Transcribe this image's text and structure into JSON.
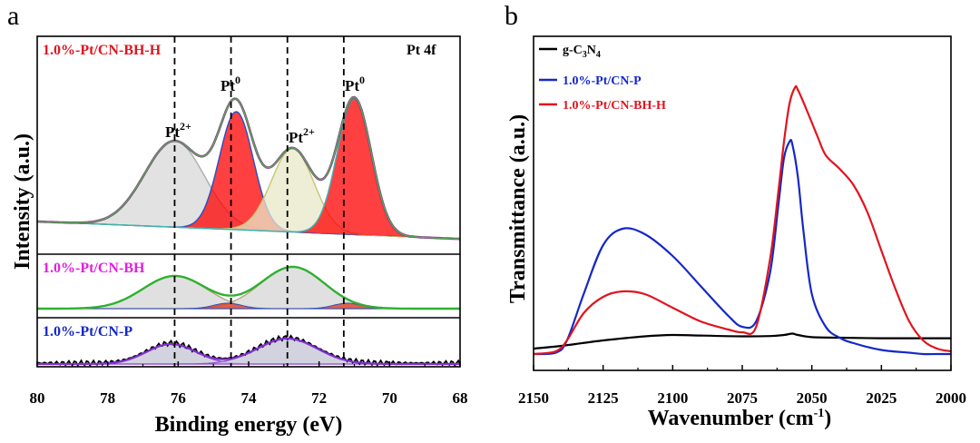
{
  "panel_a": {
    "letter": "a",
    "element_label": "Pt 4f",
    "xlabel": "Binding energy (eV)",
    "ylabel": "Intensity (a.u.)",
    "xticks": [
      "80",
      "78",
      "76",
      "74",
      "72",
      "70",
      "68"
    ],
    "sample_labels": [
      {
        "text": "1.0%-Pt/CN-BH-H",
        "color": "#e0141e"
      },
      {
        "text": "1.0%-Pt/CN-BH",
        "color": "#e020e0"
      },
      {
        "text": "1.0%-Pt/CN-P",
        "color": "#1428c8"
      }
    ],
    "peak_labels": [
      {
        "base": "Pt",
        "sup": "2+"
      },
      {
        "base": "Pt",
        "sup": "0"
      },
      {
        "base": "Pt",
        "sup": "2+"
      },
      {
        "base": "Pt",
        "sup": "0"
      }
    ]
  },
  "panel_b": {
    "letter": "b",
    "xlabel_base": "Wavenumber (cm",
    "xlabel_sup": "-1",
    "xlabel_end": ")",
    "ylabel": "Transmittance (a.u.)",
    "xticks": [
      "2150",
      "2125",
      "2100",
      "2075",
      "2050",
      "2025",
      "2000"
    ],
    "legend": [
      {
        "base": "g-C",
        "sub1": "3",
        "mid": "N",
        "sub2": "4",
        "color": "#000000"
      },
      {
        "base": "1.0%-Pt/CN-P",
        "color": "#1428c8"
      },
      {
        "base": "1.0%-Pt/CN-BH-H",
        "color": "#e0141e"
      }
    ]
  },
  "chart_data": [
    {
      "type": "line",
      "title": "",
      "xlabel": "Binding energy (eV)",
      "ylabel": "Intensity (a.u.)",
      "xlim": [
        80,
        68
      ],
      "x_reversed": true,
      "reference_lines_eV": [
        76.1,
        74.5,
        72.9,
        71.3
      ],
      "series": [
        {
          "name": "1.0%-Pt/CN-BH-H",
          "peaks": [
            {
              "state": "Pt2+",
              "center": 76.1,
              "color": "#d0d0d0"
            },
            {
              "state": "Pt0",
              "center": 74.4,
              "color": "#ff0000"
            },
            {
              "state": "Pt2+",
              "center": 72.7,
              "color": "#e0e0b0"
            },
            {
              "state": "Pt0",
              "center": 71.0,
              "color": "#ff0000"
            }
          ]
        },
        {
          "name": "1.0%-Pt/CN-BH",
          "peaks": [
            {
              "state": "Pt2+",
              "center": 76.1
            },
            {
              "state": "Pt2+",
              "center": 72.8
            }
          ]
        },
        {
          "name": "1.0%-Pt/CN-P",
          "peaks": [
            {
              "state": "Pt2+",
              "center": 76.2
            },
            {
              "state": "Pt2+",
              "center": 72.9
            }
          ]
        }
      ]
    },
    {
      "type": "line",
      "title": "",
      "xlabel": "Wavenumber (cm-1)",
      "ylabel": "Transmittance (a.u.)",
      "xlim": [
        2150,
        2000
      ],
      "x_reversed": true,
      "series": [
        {
          "name": "g-C3N4",
          "color": "#000000",
          "x": [
            2150,
            2140,
            2125,
            2110,
            2100,
            2090,
            2075,
            2065,
            2060,
            2057,
            2055,
            2050,
            2040,
            2025,
            2010,
            2000
          ],
          "y": [
            0.02,
            0.03,
            0.05,
            0.065,
            0.07,
            0.068,
            0.065,
            0.066,
            0.07,
            0.075,
            0.07,
            0.062,
            0.06,
            0.058,
            0.058,
            0.058
          ]
        },
        {
          "name": "1.0%-Pt/CN-P",
          "color": "#1428c8",
          "x": [
            2150,
            2142,
            2138,
            2132,
            2125,
            2118,
            2110,
            2100,
            2090,
            2080,
            2075,
            2070,
            2065,
            2062,
            2060,
            2058,
            2057,
            2055,
            2053,
            2050,
            2045,
            2040,
            2035,
            2025,
            2015,
            2010,
            2005,
            2000
          ],
          "y": [
            0.0,
            0.005,
            0.05,
            0.22,
            0.4,
            0.46,
            0.44,
            0.36,
            0.25,
            0.14,
            0.1,
            0.12,
            0.3,
            0.55,
            0.72,
            0.78,
            0.77,
            0.65,
            0.45,
            0.22,
            0.1,
            0.06,
            0.04,
            0.015,
            0.005,
            0.0,
            0.0,
            0.0
          ]
        },
        {
          "name": "1.0%-Pt/CN-BH-H",
          "color": "#e0141e",
          "x": [
            2150,
            2142,
            2138,
            2132,
            2125,
            2118,
            2110,
            2100,
            2090,
            2080,
            2075,
            2070,
            2065,
            2062,
            2060,
            2058,
            2056,
            2055,
            2052,
            2048,
            2045,
            2040,
            2035,
            2030,
            2025,
            2020,
            2015,
            2010,
            2005,
            2000
          ],
          "y": [
            0.0,
            0.01,
            0.05,
            0.15,
            0.21,
            0.23,
            0.22,
            0.17,
            0.12,
            0.09,
            0.08,
            0.1,
            0.35,
            0.6,
            0.78,
            0.92,
            0.98,
            0.97,
            0.9,
            0.8,
            0.73,
            0.68,
            0.62,
            0.52,
            0.38,
            0.24,
            0.12,
            0.05,
            0.02,
            0.01
          ]
        }
      ]
    }
  ]
}
